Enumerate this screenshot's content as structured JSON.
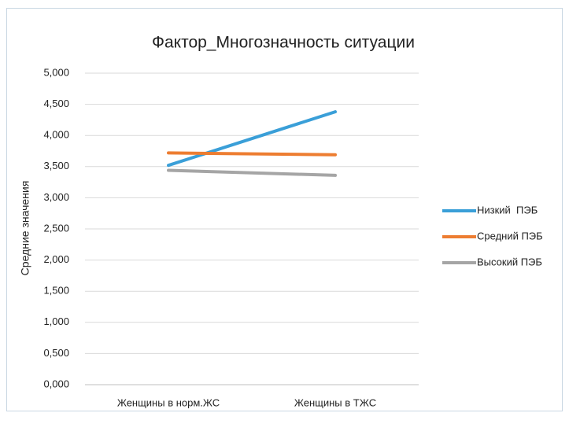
{
  "chart_data": {
    "type": "line",
    "title": "Фактор_Многозначность ситуации",
    "y_label": "Средние значения",
    "categories": [
      "Женщины в норм.ЖС",
      "Женщины в ТЖС"
    ],
    "series": [
      {
        "name": "Низкий  ПЭБ",
        "color": "#3a9fd8",
        "values": [
          3.52,
          4.38
        ]
      },
      {
        "name": "Средний ПЭБ",
        "color": "#ed7d31",
        "values": [
          3.72,
          3.69
        ]
      },
      {
        "name": "Высокий ПЭБ",
        "color": "#a5a5a5",
        "values": [
          3.44,
          3.36
        ]
      }
    ],
    "ylim": [
      0,
      5
    ],
    "yticks": [
      {
        "value": 0,
        "label": "0,000"
      },
      {
        "value": 0.5,
        "label": "0,500"
      },
      {
        "value": 1,
        "label": "1,000"
      },
      {
        "value": 1.5,
        "label": "1,500"
      },
      {
        "value": 2,
        "label": "2,000"
      },
      {
        "value": 2.5,
        "label": "2,500"
      },
      {
        "value": 3,
        "label": "3,000"
      },
      {
        "value": 3.5,
        "label": "3,500"
      },
      {
        "value": 4,
        "label": "4,000"
      },
      {
        "value": 4.5,
        "label": "4,500"
      },
      {
        "value": 5,
        "label": "5,000"
      }
    ],
    "grid": true,
    "legend": "right"
  }
}
